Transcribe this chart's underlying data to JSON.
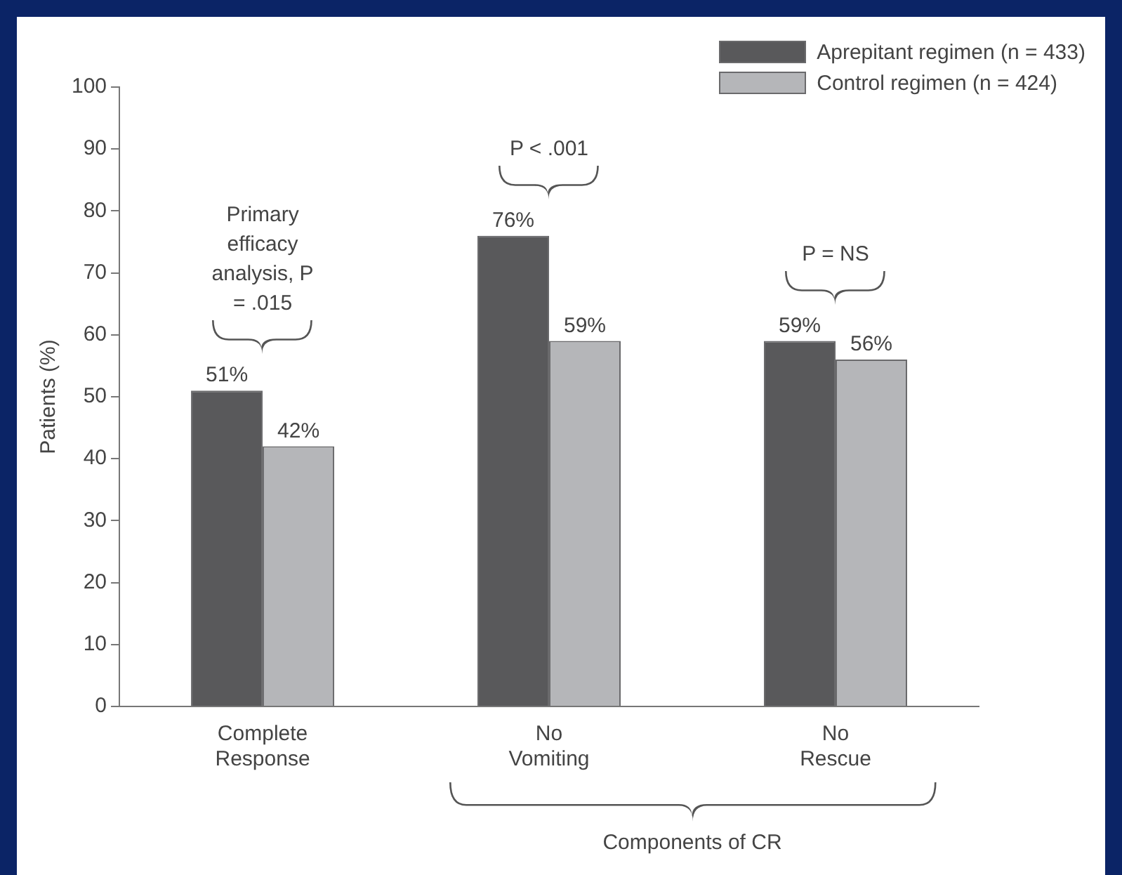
{
  "chart_data": {
    "type": "bar",
    "ylabel": "Patients (%)",
    "categories": [
      "Complete Response",
      "No Vomiting",
      "No Rescue"
    ],
    "series": [
      {
        "name": "Aprepitant regimen (n = 433)",
        "color": "#59595b",
        "values": [
          51,
          76,
          59
        ],
        "value_labels": [
          "51%",
          "76%",
          "59%"
        ]
      },
      {
        "name": "Control regimen (n = 424)",
        "color": "#b5b6b9",
        "values": [
          42,
          59,
          56
        ],
        "value_labels": [
          "42%",
          "59%",
          "56%"
        ]
      }
    ],
    "ylim": [
      0,
      100
    ],
    "yticks": [
      0,
      10,
      20,
      30,
      40,
      50,
      60,
      70,
      80,
      90,
      100
    ],
    "grid": false,
    "legend": "top right",
    "annotations": [
      "Primary efficacy analysis, P = .015",
      "P < .001",
      "P = NS",
      "Components of CR"
    ]
  }
}
